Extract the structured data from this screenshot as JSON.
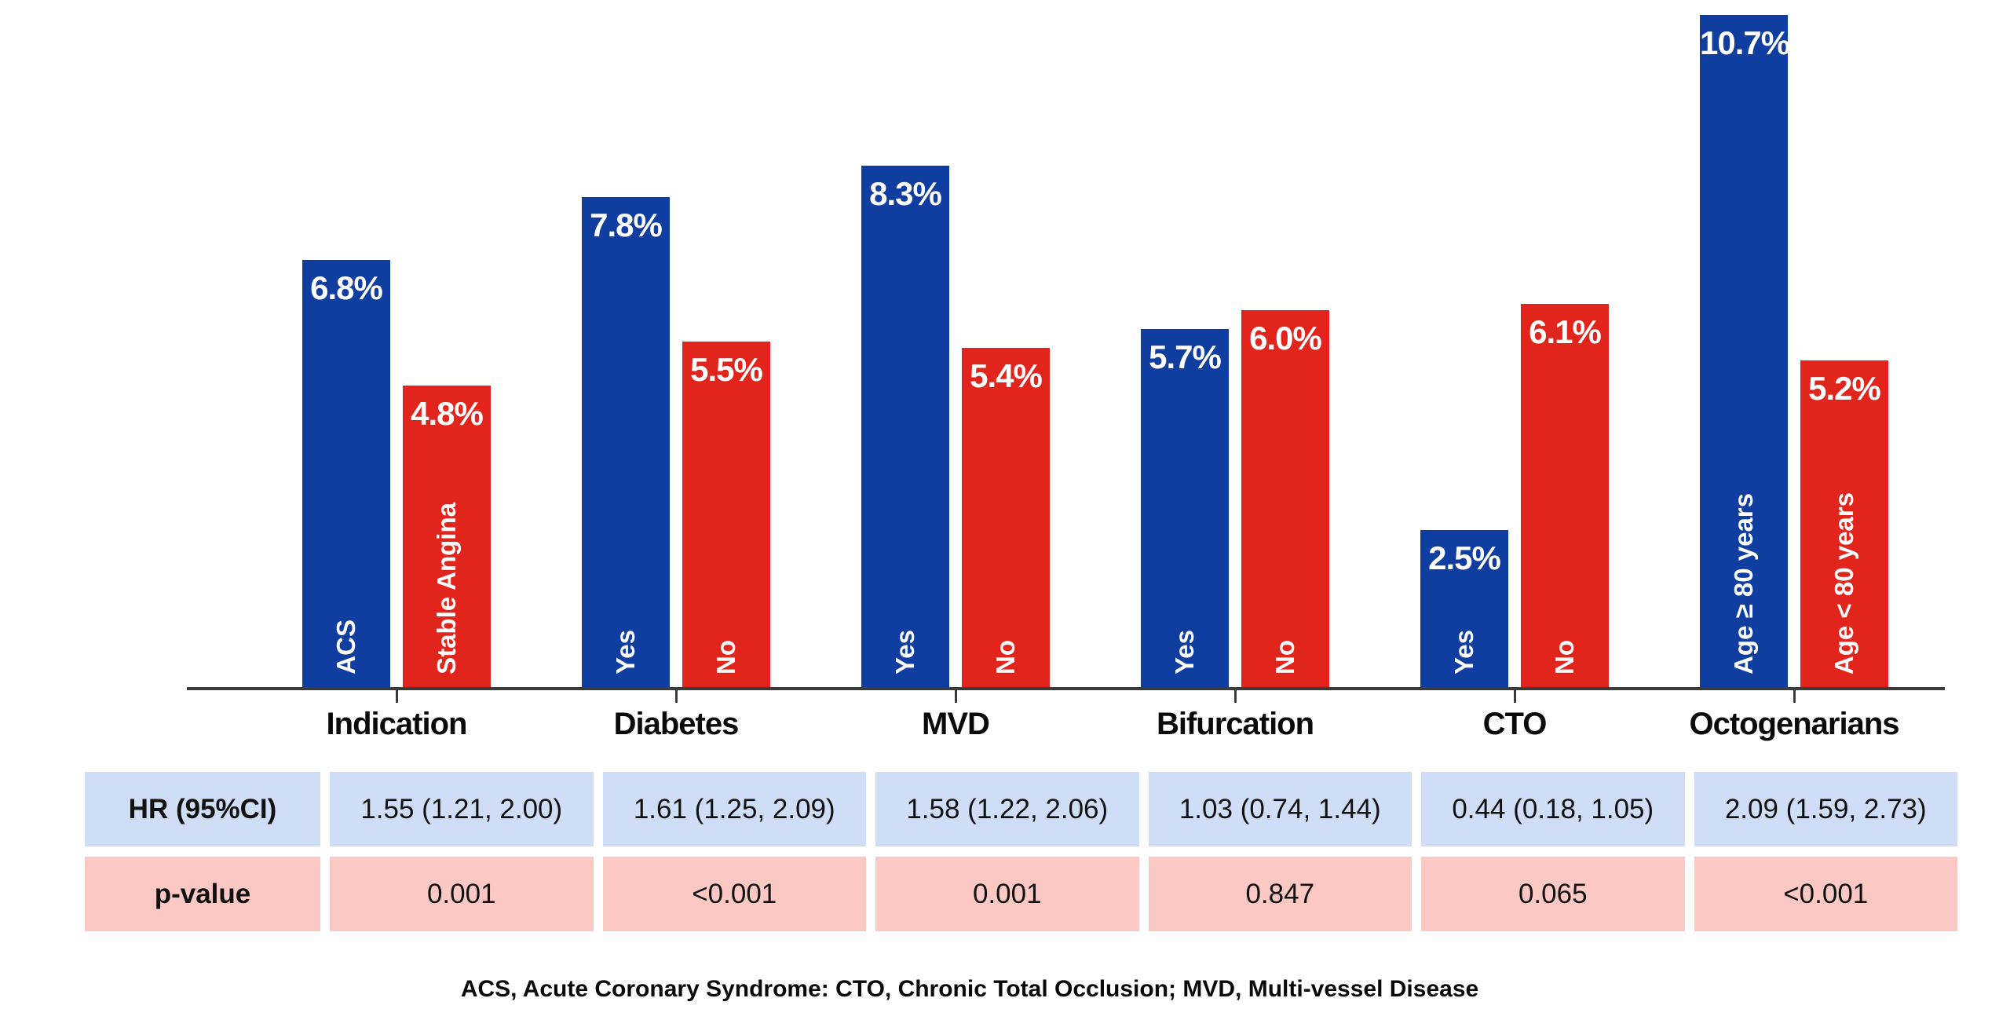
{
  "chart_data": {
    "type": "bar",
    "unit": "%",
    "title": "",
    "xlabel": "",
    "ylabel": "",
    "legend": "none",
    "grid": false,
    "ylim": [
      0,
      11
    ],
    "categories": [
      "Indication",
      "Diabetes",
      "MVD",
      "Bifurcation",
      "CTO",
      "Octogenarians"
    ],
    "groups": [
      {
        "category": "Indication",
        "bars": [
          {
            "label": "ACS",
            "value": 6.8,
            "value_label": "6.8%",
            "series": "blue"
          },
          {
            "label": "Stable Angina",
            "value": 4.8,
            "value_label": "4.8%",
            "series": "red"
          }
        ],
        "hr": "1.55 (1.21, 2.00)",
        "p": "0.001"
      },
      {
        "category": "Diabetes",
        "bars": [
          {
            "label": "Yes",
            "value": 7.8,
            "value_label": "7.8%",
            "series": "blue"
          },
          {
            "label": "No",
            "value": 5.5,
            "value_label": "5.5%",
            "series": "red"
          }
        ],
        "hr": "1.61 (1.25, 2.09)",
        "p": "<0.001"
      },
      {
        "category": "MVD",
        "bars": [
          {
            "label": "Yes",
            "value": 8.3,
            "value_label": "8.3%",
            "series": "blue"
          },
          {
            "label": "No",
            "value": 5.4,
            "value_label": "5.4%",
            "series": "red"
          }
        ],
        "hr": "1.58 (1.22, 2.06)",
        "p": "0.001"
      },
      {
        "category": "Bifurcation",
        "bars": [
          {
            "label": "Yes",
            "value": 5.7,
            "value_label": "5.7%",
            "series": "blue"
          },
          {
            "label": "No",
            "value": 6.0,
            "value_label": "6.0%",
            "series": "red"
          }
        ],
        "hr": "1.03 (0.74, 1.44)",
        "p": "0.847"
      },
      {
        "category": "CTO",
        "bars": [
          {
            "label": "Yes",
            "value": 2.5,
            "value_label": "2.5%",
            "series": "blue"
          },
          {
            "label": "No",
            "value": 6.1,
            "value_label": "6.1%",
            "series": "red"
          }
        ],
        "hr": "0.44 (0.18, 1.05)",
        "p": "0.065"
      },
      {
        "category": "Octogenarians",
        "bars": [
          {
            "label": "Age ≥ 80 years",
            "value": 10.7,
            "value_label": "10.7%",
            "series": "blue"
          },
          {
            "label": "Age < 80 years",
            "value": 5.2,
            "value_label": "5.2%",
            "series": "red"
          }
        ],
        "hr": "2.09 (1.59, 2.73)",
        "p": "<0.001"
      }
    ],
    "table": {
      "hr_header": "HR (95%CI)",
      "p_header": "p-value"
    },
    "footnote": "ACS, Acute Coronary Syndrome: CTO, Chronic Total Occlusion; MVD, Multi-vessel Disease",
    "colors": {
      "bar_blue": "#0f3da0",
      "bar_red": "#e2251c",
      "table_blue_bg": "#cfddf6",
      "table_pink_bg": "#fbc8c4",
      "axis": "#3b3b3b",
      "label_on_bar": "#ffffff",
      "text": "#0a0a0a"
    }
  }
}
